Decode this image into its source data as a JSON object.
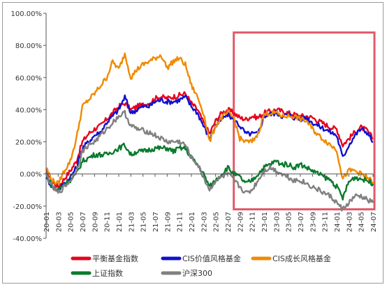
{
  "chart_data": {
    "type": "line",
    "title": "",
    "xlabel": "",
    "ylabel": "",
    "ylim": [
      -40,
      100
    ],
    "y_ticks": [
      -40,
      -20,
      0,
      20,
      40,
      60,
      80,
      100
    ],
    "y_tick_labels": [
      "-40.00%",
      "-20.00%",
      "0.00%",
      "20.00%",
      "40.00%",
      "60.00%",
      "80.00%",
      "100.00%"
    ],
    "x_ticks": [
      "20-01",
      "20-03",
      "20-05",
      "20-07",
      "20-09",
      "20-11",
      "21-01",
      "21-03",
      "21-05",
      "21-07",
      "21-09",
      "21-11",
      "22-01",
      "22-03",
      "22-05",
      "22-07",
      "22-09",
      "22-11",
      "23-01",
      "23-03",
      "23-05",
      "23-07",
      "23-09",
      "23-11",
      "24-01",
      "24-03",
      "24-05",
      "24-07"
    ],
    "legend_position": "bottom",
    "grid": false,
    "highlight": {
      "x_start": "22-08",
      "x_end": "24-07",
      "color": "#e05a68"
    },
    "x": [
      "20-01",
      "20-02",
      "20-03",
      "20-04",
      "20-05",
      "20-06",
      "20-07",
      "20-08",
      "20-09",
      "20-10",
      "20-11",
      "20-12",
      "21-01",
      "21-02",
      "21-03",
      "21-04",
      "21-05",
      "21-06",
      "21-07",
      "21-08",
      "21-09",
      "21-10",
      "21-11",
      "21-12",
      "22-01",
      "22-02",
      "22-03",
      "22-04",
      "22-05",
      "22-06",
      "22-07",
      "22-08",
      "22-09",
      "22-10",
      "22-11",
      "22-12",
      "23-01",
      "23-02",
      "23-03",
      "23-04",
      "23-05",
      "23-06",
      "23-07",
      "23-08",
      "23-09",
      "23-10",
      "23-11",
      "23-12",
      "24-01",
      "24-02",
      "24-03",
      "24-04",
      "24-05",
      "24-06",
      "24-07"
    ],
    "series": [
      {
        "name": "平衡基金指数",
        "color": "#e8001c",
        "values": [
          2,
          -5,
          -8,
          -3,
          2,
          8,
          20,
          25,
          28,
          30,
          34,
          38,
          42,
          44,
          40,
          42,
          43,
          44,
          47,
          48,
          47,
          48,
          49,
          50,
          44,
          40,
          32,
          25,
          33,
          38,
          40,
          38,
          35,
          34,
          36,
          35,
          38,
          39,
          40,
          39,
          38,
          37,
          36,
          36,
          35,
          33,
          31,
          29,
          28,
          18,
          22,
          26,
          29,
          27,
          22
        ]
      },
      {
        "name": "CIS价值风格基金",
        "color": "#1010d0",
        "values": [
          -2,
          -8,
          -10,
          -6,
          -2,
          4,
          16,
          20,
          24,
          26,
          32,
          36,
          40,
          48,
          38,
          40,
          42,
          42,
          45,
          46,
          45,
          45,
          46,
          48,
          42,
          38,
          30,
          22,
          30,
          34,
          37,
          34,
          30,
          25,
          25,
          25,
          36,
          37,
          38,
          36,
          37,
          35,
          34,
          35,
          32,
          30,
          28,
          26,
          24,
          10,
          18,
          24,
          28,
          26,
          20
        ]
      },
      {
        "name": "CIS成长风格基金",
        "color": "#f08a00",
        "values": [
          4,
          -4,
          -6,
          2,
          8,
          22,
          42,
          46,
          50,
          55,
          60,
          70,
          65,
          75,
          60,
          65,
          68,
          70,
          72,
          74,
          66,
          70,
          72,
          68,
          55,
          48,
          38,
          20,
          30,
          35,
          38,
          35,
          22,
          20,
          20,
          25,
          37,
          38,
          38,
          36,
          36,
          36,
          34,
          33,
          28,
          24,
          21,
          18,
          15,
          -3,
          2,
          2,
          0,
          -2,
          -5
        ]
      },
      {
        "name": "上证指数",
        "color": "#0a7a2e",
        "values": [
          0,
          -8,
          -10,
          -6,
          -4,
          0,
          8,
          10,
          12,
          12,
          12,
          14,
          16,
          18,
          12,
          14,
          14,
          15,
          16,
          16,
          16,
          14,
          16,
          16,
          10,
          6,
          0,
          -8,
          -4,
          0,
          4,
          0,
          -2,
          -6,
          -4,
          0,
          4,
          6,
          8,
          6,
          6,
          4,
          6,
          4,
          2,
          0,
          -2,
          -4,
          -8,
          -15,
          -5,
          -2,
          -3,
          -4,
          -6
        ]
      },
      {
        "name": "沪深300",
        "color": "#808080",
        "values": [
          0,
          -8,
          -12,
          -8,
          -4,
          2,
          14,
          18,
          20,
          24,
          28,
          32,
          36,
          38,
          30,
          28,
          27,
          26,
          24,
          22,
          20,
          20,
          20,
          18,
          10,
          6,
          -2,
          -10,
          -4,
          -2,
          0,
          -4,
          -8,
          -12,
          -10,
          -4,
          2,
          4,
          2,
          0,
          -2,
          -4,
          -4,
          -6,
          -8,
          -10,
          -12,
          -14,
          -18,
          -22,
          -18,
          -14,
          -14,
          -16,
          -18
        ]
      }
    ]
  }
}
